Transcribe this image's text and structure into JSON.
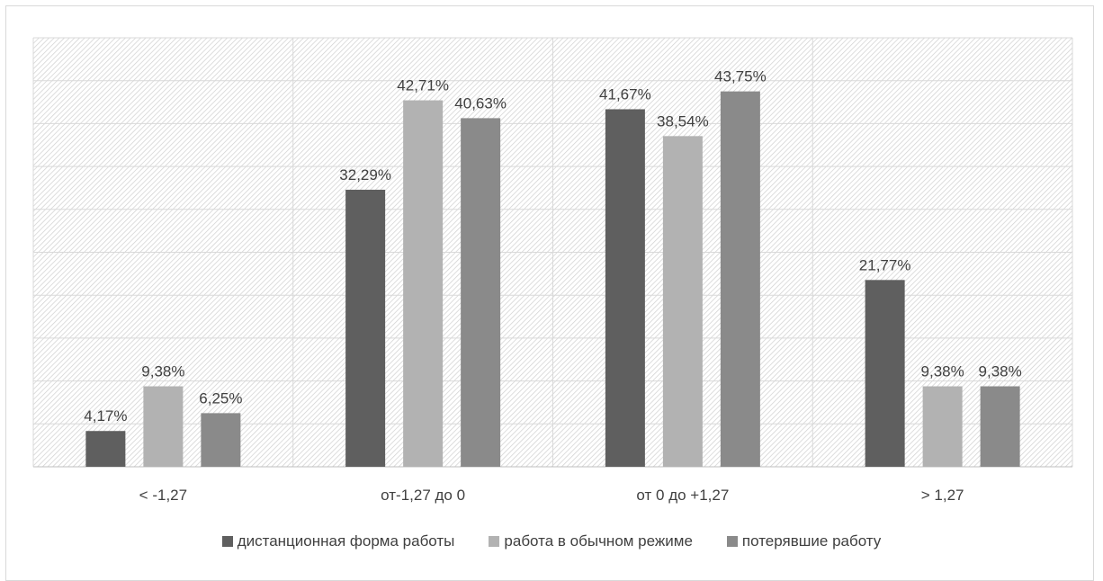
{
  "chart_data": {
    "type": "bar",
    "categories": [
      "< -1,27",
      "от-1,27 до 0",
      "от 0 до +1,27",
      "> 1,27"
    ],
    "series": [
      {
        "name": "дистанционная форма работы",
        "color": "#5f5f5f",
        "values": [
          4.17,
          32.29,
          41.67,
          21.77
        ],
        "labels": [
          "4,17%",
          "32,29%",
          "41,67%",
          "21,77%"
        ]
      },
      {
        "name": "работа в обычном режиме",
        "color": "#b2b2b2",
        "values": [
          9.38,
          42.71,
          38.54,
          9.38
        ],
        "labels": [
          "9,38%",
          "42,71%",
          "38,54%",
          "9,38%"
        ]
      },
      {
        "name": "потерявшие работу",
        "color": "#8a8a8a",
        "values": [
          6.25,
          40.63,
          43.75,
          9.38
        ],
        "labels": [
          "6,25%",
          "40,63%",
          "43,75%",
          "9,38%"
        ]
      }
    ],
    "ylim": [
      0,
      50
    ],
    "ygrid_step": 5,
    "grid": true,
    "y_axis_labels": false,
    "legend_position": "bottom",
    "plot_background": "hatched"
  }
}
